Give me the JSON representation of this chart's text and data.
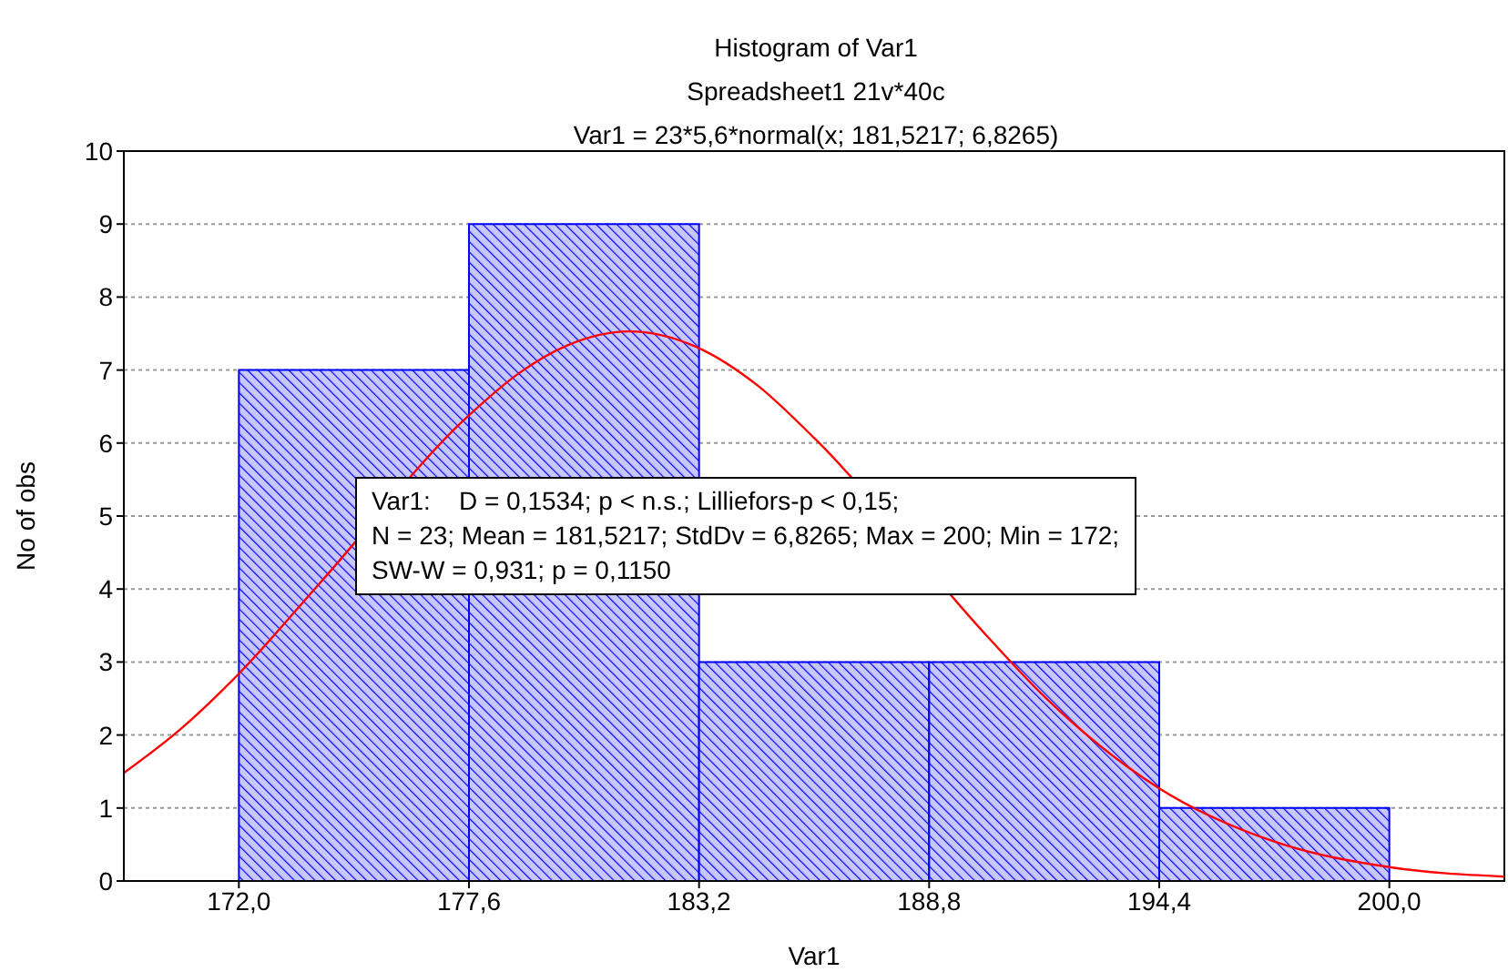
{
  "chart_data": {
    "type": "histogram",
    "title": "Histogram of Var1",
    "subtitle": "Spreadsheet1 21v*40c",
    "xlabel": "Var1",
    "ylabel": "No of obs",
    "annotations": [
      "Var1 = 23*5,6*normal(x; 181,5217; 6,8265)",
      "Var1:    D = 0,1534; p < n.s.; Lilliefors-p < 0,15;",
      "N = 23; Mean = 181,5217; StdDv = 6,8265; Max = 200; Min = 172;",
      "SW-W = 0,931; p = 0,1150"
    ],
    "bins": [
      172.0,
      177.6,
      183.2,
      188.8,
      194.4,
      200.0
    ],
    "values": [
      7,
      9,
      3,
      3,
      1
    ],
    "color": "#0000ff",
    "series": [
      {
        "type": "line",
        "color": "#ff0000",
        "x": [
          169.2,
          170.6,
          172,
          174,
          177.6,
          178.8,
          180,
          181.5,
          183.2,
          184.6,
          186,
          190.2,
          191.6,
          194.4,
          197.2,
          200,
          202.8
        ],
        "values": [
          1.48,
          2.09,
          2.84,
          4.1,
          6.38,
          6.95,
          7.34,
          7.53,
          7.3,
          6.8,
          6.07,
          3.36,
          2.53,
          1.27,
          0.54,
          0.19,
          0.06
        ]
      }
    ],
    "xlim": [
      169.2,
      202.8
    ],
    "xticks": [
      {
        "value": 172,
        "label": "172,0"
      },
      {
        "value": 177.6,
        "label": "177,6"
      },
      {
        "value": 183.2,
        "label": "183,2"
      },
      {
        "value": 188.8,
        "label": "188,8"
      },
      {
        "value": 194.4,
        "label": "194,4"
      },
      {
        "value": 200,
        "label": "200,0"
      }
    ],
    "ylim": [
      0,
      10
    ],
    "yticks": [
      0,
      1,
      2,
      3,
      4,
      5,
      6,
      7,
      8,
      9,
      10
    ],
    "grid": "y",
    "legend": false,
    "marker": "none",
    "line_style": "solid"
  }
}
